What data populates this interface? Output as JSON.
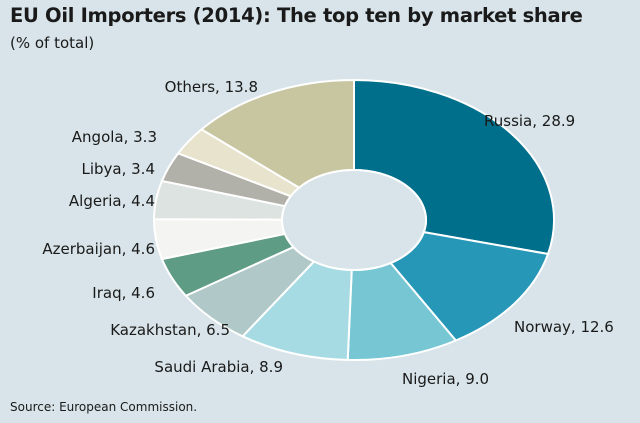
{
  "chart_data": {
    "type": "pie",
    "title": "EU Oil Importers (2014): The top ten by market share",
    "subtitle": "(% of total)",
    "source": "Source: European Commission.",
    "slices": [
      {
        "label": "Russia",
        "value": 28.9,
        "text": "Russia, 28.9",
        "color": "#006f8c"
      },
      {
        "label": "Norway",
        "value": 12.6,
        "text": "Norway, 12.6",
        "color": "#2797b8"
      },
      {
        "label": "Nigeria",
        "value": 9.0,
        "text": "Nigeria, 9.0",
        "color": "#76c6d4"
      },
      {
        "label": "Saudi Arabia",
        "value": 8.9,
        "text": "Saudi Arabia, 8.9",
        "color": "#a6dbe3"
      },
      {
        "label": "Kazakhstan",
        "value": 6.5,
        "text": "Kazakhstan, 6.5",
        "color": "#b0c8c8"
      },
      {
        "label": "Iraq",
        "value": 4.6,
        "text": "Iraq, 4.6",
        "color": "#5f9c86"
      },
      {
        "label": "Azerbaijan",
        "value": 4.6,
        "text": "Azerbaijan, 4.6",
        "color": "#f4f5f2"
      },
      {
        "label": "Algeria",
        "value": 4.4,
        "text": "Algeria, 4.4",
        "color": "#dde3e0"
      },
      {
        "label": "Libya",
        "value": 3.4,
        "text": "Libya, 3.4",
        "color": "#b2b1a9"
      },
      {
        "label": "Angola",
        "value": 3.3,
        "text": "Angola, 3.3",
        "color": "#e8e3cd"
      },
      {
        "label": "Others",
        "value": 13.8,
        "text": "Others, 13.8",
        "color": "#c8c5a1"
      }
    ],
    "legend": "none"
  }
}
